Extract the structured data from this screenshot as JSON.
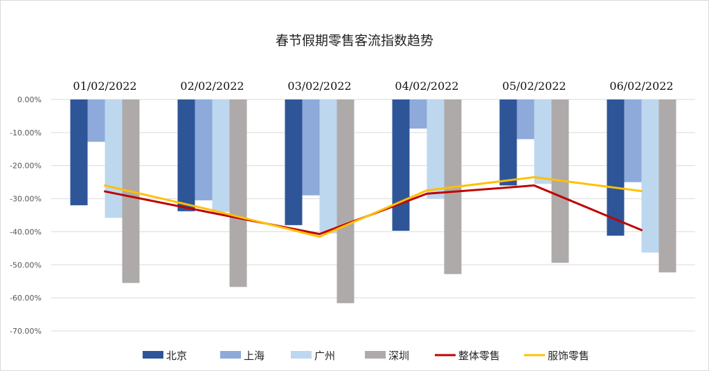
{
  "chart_data": {
    "type": "bar",
    "title": "春节假期零售客流指数趋势",
    "categories": [
      "01/02/2022",
      "02/02/2022",
      "03/02/2022",
      "04/02/2022",
      "05/02/2022",
      "06/02/2022"
    ],
    "ylim": [
      -70,
      0
    ],
    "y_ticks": [
      "0.00%",
      "-10.00%",
      "-20.00%",
      "-30.00%",
      "-40.00%",
      "-50.00%",
      "-60.00%",
      "-70.00%"
    ],
    "grid": true,
    "legend_position": "bottom",
    "bar_series": [
      {
        "name": "北京",
        "color": "#2e5597",
        "values": [
          -32.0,
          -33.8,
          -38.0,
          -39.7,
          -26.0,
          -41.2
        ]
      },
      {
        "name": "上海",
        "color": "#8eaadb",
        "values": [
          -12.8,
          -30.5,
          -29.0,
          -8.8,
          -12.0,
          -25.0
        ]
      },
      {
        "name": "广州",
        "color": "#bdd7ee",
        "values": [
          -35.8,
          -34.0,
          -40.5,
          -30.0,
          -25.5,
          -46.3
        ]
      },
      {
        "name": "深圳",
        "color": "#aeaaaa",
        "values": [
          -55.5,
          -56.7,
          -61.6,
          -52.8,
          -49.4,
          -52.3
        ]
      }
    ],
    "line_series": [
      {
        "name": "整体零售",
        "color": "#c00000",
        "values": [
          -27.8,
          -34.3,
          -40.7,
          -28.5,
          -26.0,
          -39.5
        ]
      },
      {
        "name": "服饰零售",
        "color": "#ffc000",
        "values": [
          -26.0,
          -33.5,
          -41.5,
          -27.5,
          -23.5,
          -27.7
        ]
      }
    ]
  }
}
